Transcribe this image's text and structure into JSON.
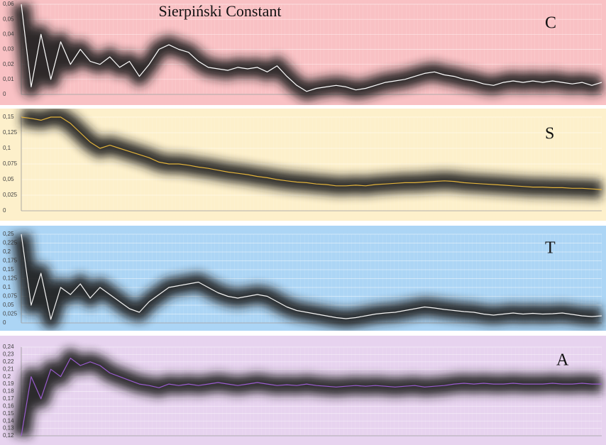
{
  "chart_data": [
    {
      "type": "line",
      "title": "Sierpiński Constant",
      "series": [
        {
          "name": "C",
          "color": "#ffffff",
          "values": [
            0.06,
            0.005,
            0.04,
            0.01,
            0.035,
            0.02,
            0.03,
            0.022,
            0.02,
            0.025,
            0.018,
            0.022,
            0.012,
            0.02,
            0.03,
            0.033,
            0.03,
            0.028,
            0.022,
            0.018,
            0.017,
            0.016,
            0.018,
            0.017,
            0.018,
            0.015,
            0.019,
            0.012,
            0.006,
            0.002,
            0.004,
            0.005,
            0.006,
            0.005,
            0.003,
            0.004,
            0.006,
            0.008,
            0.009,
            0.01,
            0.012,
            0.014,
            0.015,
            0.013,
            0.012,
            0.01,
            0.009,
            0.007,
            0.006,
            0.008,
            0.009,
            0.008,
            0.009,
            0.008,
            0.009,
            0.008,
            0.007,
            0.008,
            0.006,
            0.008
          ]
        }
      ],
      "ylim": [
        0,
        0.06
      ],
      "yticks": [
        0,
        {
          "value": 0.01,
          "label": "0,01"
        },
        {
          "value": 0.02,
          "label": "0,02"
        },
        {
          "value": 0.03,
          "label": "0,03"
        },
        {
          "value": 0.04,
          "label": "0,04"
        },
        {
          "value": 0.05,
          "label": "0,05"
        },
        {
          "value": 0.06,
          "label": "0,06"
        }
      ],
      "grid": true,
      "background": "#f9c1c4"
    },
    {
      "type": "line",
      "series": [
        {
          "name": "S",
          "color": "#e2b33c",
          "values": [
            0.15,
            0.148,
            0.145,
            0.15,
            0.15,
            0.14,
            0.125,
            0.11,
            0.1,
            0.105,
            0.1,
            0.095,
            0.09,
            0.085,
            0.078,
            0.075,
            0.075,
            0.073,
            0.07,
            0.068,
            0.065,
            0.062,
            0.06,
            0.058,
            0.055,
            0.053,
            0.05,
            0.048,
            0.046,
            0.045,
            0.043,
            0.042,
            0.04,
            0.04,
            0.041,
            0.04,
            0.042,
            0.043,
            0.044,
            0.045,
            0.045,
            0.046,
            0.047,
            0.048,
            0.047,
            0.045,
            0.044,
            0.043,
            0.042,
            0.041,
            0.04,
            0.039,
            0.038,
            0.038,
            0.037,
            0.037,
            0.036,
            0.036,
            0.035,
            0.034
          ]
        }
      ],
      "ylim": [
        0,
        0.15
      ],
      "yticks": [
        0,
        {
          "value": 0.025,
          "label": "0,025"
        },
        {
          "value": 0.05,
          "label": "0,05"
        },
        {
          "value": 0.075,
          "label": "0,075"
        },
        {
          "value": 0.1,
          "label": "0,1"
        },
        {
          "value": 0.125,
          "label": "0,125"
        },
        {
          "value": 0.15,
          "label": "0,15"
        }
      ],
      "grid": true,
      "background": "#fdf0cb"
    },
    {
      "type": "line",
      "series": [
        {
          "name": "T",
          "color": "#f4f4f4",
          "values": [
            0.25,
            0.05,
            0.14,
            0.01,
            0.1,
            0.08,
            0.11,
            0.07,
            0.1,
            0.08,
            0.06,
            0.04,
            0.03,
            0.06,
            0.08,
            0.1,
            0.105,
            0.11,
            0.115,
            0.1,
            0.085,
            0.075,
            0.07,
            0.075,
            0.08,
            0.075,
            0.06,
            0.045,
            0.035,
            0.03,
            0.025,
            0.02,
            0.015,
            0.012,
            0.015,
            0.02,
            0.025,
            0.028,
            0.03,
            0.035,
            0.04,
            0.045,
            0.042,
            0.038,
            0.035,
            0.032,
            0.03,
            0.025,
            0.022,
            0.025,
            0.028,
            0.025,
            0.027,
            0.025,
            0.026,
            0.028,
            0.024,
            0.02,
            0.018,
            0.02
          ]
        }
      ],
      "ylim": [
        0,
        0.25
      ],
      "yticks": [
        0,
        {
          "value": 0.025,
          "label": "0,025"
        },
        {
          "value": 0.05,
          "label": "0,05"
        },
        {
          "value": 0.075,
          "label": "0,075"
        },
        {
          "value": 0.1,
          "label": "0,1"
        },
        {
          "value": 0.125,
          "label": "0,125"
        },
        {
          "value": 0.15,
          "label": "0,15"
        },
        {
          "value": 0.175,
          "label": "0,175"
        },
        {
          "value": 0.2,
          "label": "0,2"
        },
        {
          "value": 0.225,
          "label": "0,225"
        },
        {
          "value": 0.25,
          "label": "0,25"
        }
      ],
      "grid": true,
      "background": "#acd5f5"
    },
    {
      "type": "line",
      "series": [
        {
          "name": "A",
          "color": "#9a5ccf",
          "values": [
            0.12,
            0.2,
            0.17,
            0.21,
            0.2,
            0.225,
            0.215,
            0.22,
            0.215,
            0.205,
            0.2,
            0.195,
            0.19,
            0.188,
            0.185,
            0.19,
            0.188,
            0.19,
            0.188,
            0.19,
            0.192,
            0.19,
            0.188,
            0.19,
            0.192,
            0.19,
            0.188,
            0.189,
            0.188,
            0.19,
            0.188,
            0.187,
            0.186,
            0.187,
            0.188,
            0.187,
            0.188,
            0.187,
            0.186,
            0.187,
            0.188,
            0.186,
            0.187,
            0.188,
            0.19,
            0.191,
            0.19,
            0.191,
            0.19,
            0.19,
            0.191,
            0.19,
            0.19,
            0.19,
            0.191,
            0.19,
            0.19,
            0.191,
            0.19,
            0.19
          ]
        }
      ],
      "ylim": [
        0.12,
        0.24
      ],
      "yticks": [
        {
          "value": 0.12,
          "label": "0,12"
        },
        {
          "value": 0.13,
          "label": "0,13"
        },
        {
          "value": 0.14,
          "label": "0,14"
        },
        {
          "value": 0.15,
          "label": "0,15"
        },
        {
          "value": 0.16,
          "label": "0,16"
        },
        {
          "value": 0.17,
          "label": "0,17"
        },
        {
          "value": 0.18,
          "label": "0,18"
        },
        {
          "value": 0.19,
          "label": "0,19"
        },
        {
          "value": 0.2,
          "label": "0,2"
        },
        {
          "value": 0.21,
          "label": "0,21"
        },
        {
          "value": 0.22,
          "label": "0,22"
        },
        {
          "value": 0.23,
          "label": "0,23"
        },
        {
          "value": 0.24,
          "label": "0,24"
        }
      ],
      "grid": true,
      "background": "#e7d3ef"
    }
  ]
}
